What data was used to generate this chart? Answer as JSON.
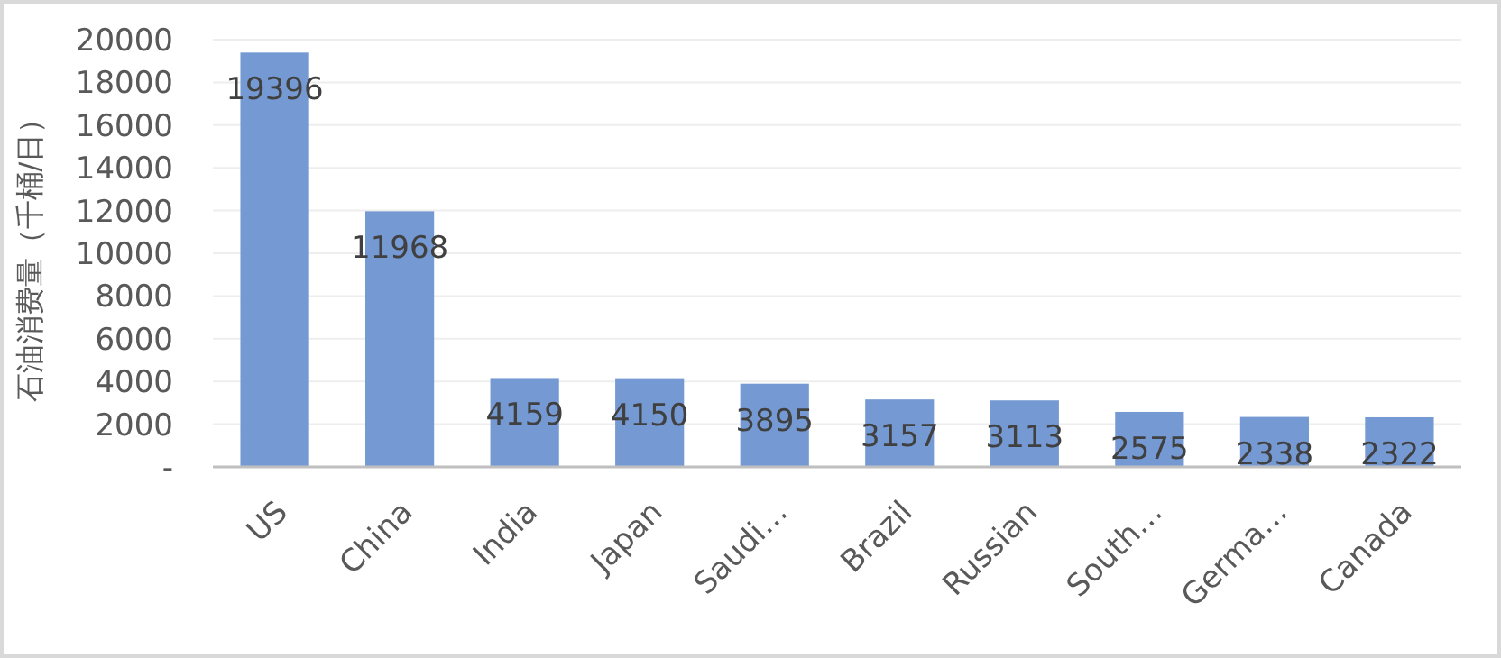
{
  "chart_data": {
    "type": "bar",
    "ylabel": "石油消费量（千桶/日）",
    "categories": [
      "US",
      "China",
      "India",
      "Japan",
      "Saudi…",
      "Brazil",
      "Russian",
      "South…",
      "Germa…",
      "Canada"
    ],
    "values": [
      19396,
      11968,
      4159,
      4150,
      3895,
      3157,
      3113,
      2575,
      2338,
      2322
    ],
    "color": "#7599d3",
    "ylim": [
      0,
      20000
    ],
    "yticks": [
      {
        "value": 0,
        "label": "-"
      },
      2000,
      4000,
      6000,
      8000,
      10000,
      12000,
      14000,
      16000,
      18000,
      20000
    ],
    "grid": "y",
    "data_labels": true
  }
}
